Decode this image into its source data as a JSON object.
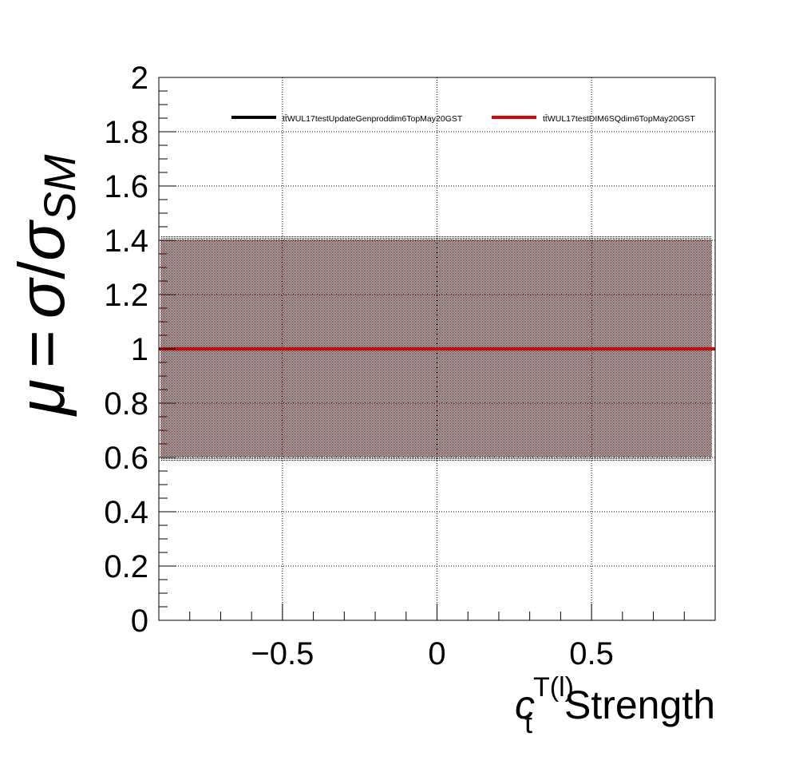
{
  "chart_data": {
    "type": "line",
    "xlabel": {
      "c": "c",
      "sub": "t",
      "sup": "T(l)",
      "tail": "Strength"
    },
    "ylabel": {
      "mu": "μ",
      "eq": "=",
      "sigma": "σ",
      "slash": "/",
      "sigma2": "σ",
      "sub": "SM"
    },
    "xlim": [
      -0.9,
      0.9
    ],
    "ylim": [
      0,
      2
    ],
    "x_ticks": [
      {
        "value": -0.5,
        "label": "−0.5"
      },
      {
        "value": 0,
        "label": "0"
      },
      {
        "value": 0.5,
        "label": "0.5"
      }
    ],
    "y_ticks": [
      {
        "value": 0,
        "label": "0"
      },
      {
        "value": 0.2,
        "label": "0.2"
      },
      {
        "value": 0.4,
        "label": "0.4"
      },
      {
        "value": 0.6,
        "label": "0.6"
      },
      {
        "value": 0.8,
        "label": "0.8"
      },
      {
        "value": 1.0,
        "label": "1"
      },
      {
        "value": 1.2,
        "label": "1.2"
      },
      {
        "value": 1.4,
        "label": "1.4"
      },
      {
        "value": 1.6,
        "label": "1.6"
      },
      {
        "value": 1.8,
        "label": "1.8"
      },
      {
        "value": 2.0,
        "label": "2"
      }
    ],
    "grid": true,
    "legend_position": "top",
    "series": [
      {
        "name": "tt̄WUL17testUpdateGenproddim6TopMay20GST",
        "color": "#000000",
        "x": [
          -0.9,
          0.9
        ],
        "y": [
          1.0,
          1.0
        ],
        "band_low": 0.585,
        "band_high": 1.415
      },
      {
        "name": "tt̄WUL17testDIM6SQdim6TopMay20GST",
        "color": "#e00000",
        "x": [
          -0.9,
          0.9
        ],
        "y": [
          1.0,
          1.0
        ],
        "band_low": 0.6,
        "band_high": 1.4
      }
    ]
  }
}
